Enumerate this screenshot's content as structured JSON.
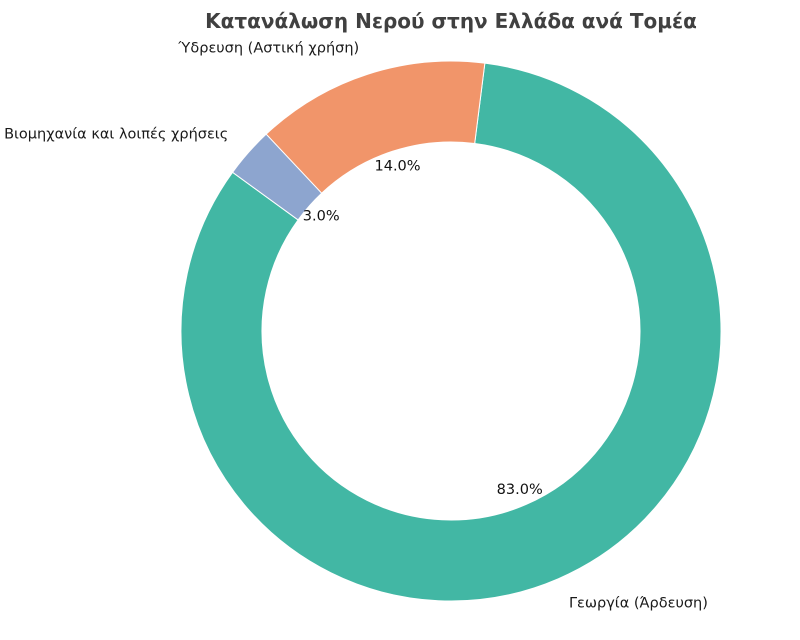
{
  "chart_data": {
    "type": "pie",
    "donut": true,
    "title": "Κατανάλωση Νερού στην Ελλάδα ανά Τομέα",
    "categories": [
      "Γεωργία (Άρδευση)",
      "Ύδρευση (Αστική χρήση)",
      "Βιομηχανία και λοιπές χρήσεις"
    ],
    "values": [
      83.0,
      14.0,
      3.0
    ],
    "percent_labels": [
      "83.0%",
      "14.0%",
      "3.0%"
    ],
    "colors": [
      "#42b7a4",
      "#f1956a",
      "#8da5cf"
    ],
    "start_angle_deg": 144,
    "direction": "counterclockwise",
    "legend": "none"
  }
}
